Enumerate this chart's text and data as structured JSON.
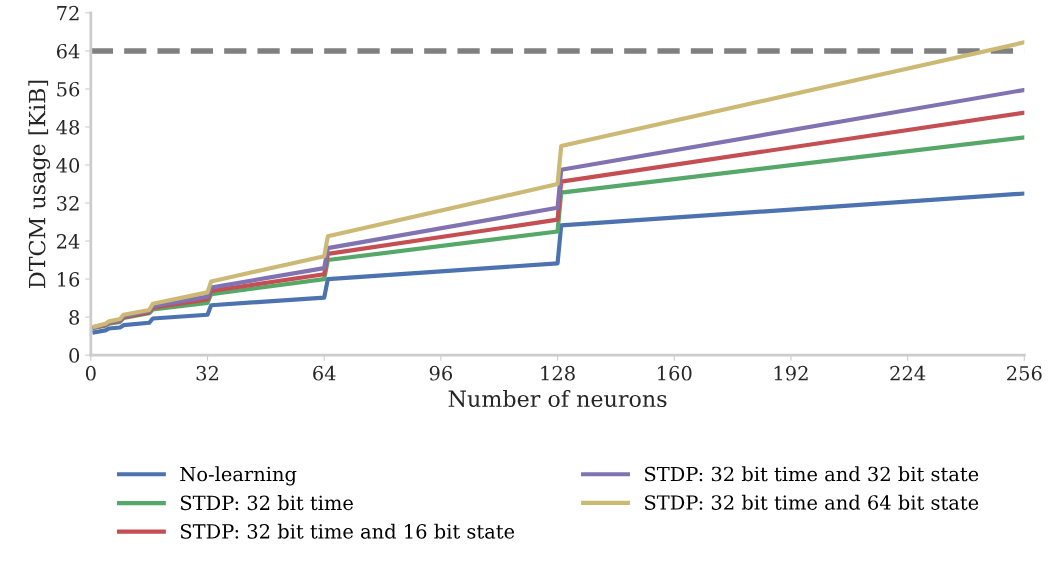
{
  "chart_data": {
    "type": "line",
    "xlabel": "Number of neurons",
    "ylabel": "DTCM usage [KiB]",
    "x": [
      1,
      4,
      5,
      8,
      9,
      16,
      17,
      32,
      33,
      64,
      65,
      128,
      129,
      256
    ],
    "series": [
      {
        "name": "No-learning",
        "color": "#4c72b0",
        "values": [
          4.8,
          5.2,
          5.6,
          5.8,
          6.3,
          6.8,
          7.7,
          8.5,
          10.5,
          12.1,
          16,
          19.3,
          27.3,
          34
        ]
      },
      {
        "name": "STDP: 32 bit time",
        "color": "#55a868",
        "values": [
          5.8,
          6.2,
          6.6,
          7,
          7.8,
          8.8,
          9.6,
          11,
          12.8,
          16,
          20,
          26,
          34.2,
          45.8
        ]
      },
      {
        "name": "STDP: 32 bit time and 16 bit state",
        "color": "#c44e52",
        "values": [
          5.8,
          6.3,
          6.8,
          7.2,
          8,
          9,
          10,
          11.7,
          13.5,
          17,
          21.3,
          28.5,
          36.5,
          51
        ]
      },
      {
        "name": "STDP: 32 bit time and 32 bit state",
        "color": "#8172b2",
        "values": [
          5.9,
          6.4,
          6.9,
          7.4,
          8.2,
          9.3,
          10.3,
          12.3,
          14.2,
          18.3,
          22.5,
          31,
          39,
          55.8
        ]
      },
      {
        "name": "STDP: 32 bit time and 64 bit state",
        "color": "#ccb974",
        "values": [
          6,
          6.6,
          7.1,
          7.6,
          8.5,
          9.5,
          10.8,
          13.2,
          15.5,
          20.8,
          25,
          36,
          44,
          65.8
        ]
      }
    ],
    "xlim": [
      0,
      256
    ],
    "xticks": [
      0,
      32,
      64,
      96,
      128,
      160,
      192,
      224,
      256
    ],
    "ylim": [
      0,
      72
    ],
    "yticks": [
      0,
      8,
      16,
      24,
      32,
      40,
      48,
      56,
      64,
      72
    ],
    "ref_lines": [
      {
        "axis": "y",
        "value": 64,
        "color": "#808080",
        "line_style": "dashed"
      }
    ],
    "grid": false,
    "legend": "bottom",
    "marker": "none",
    "line_style": "solid"
  }
}
